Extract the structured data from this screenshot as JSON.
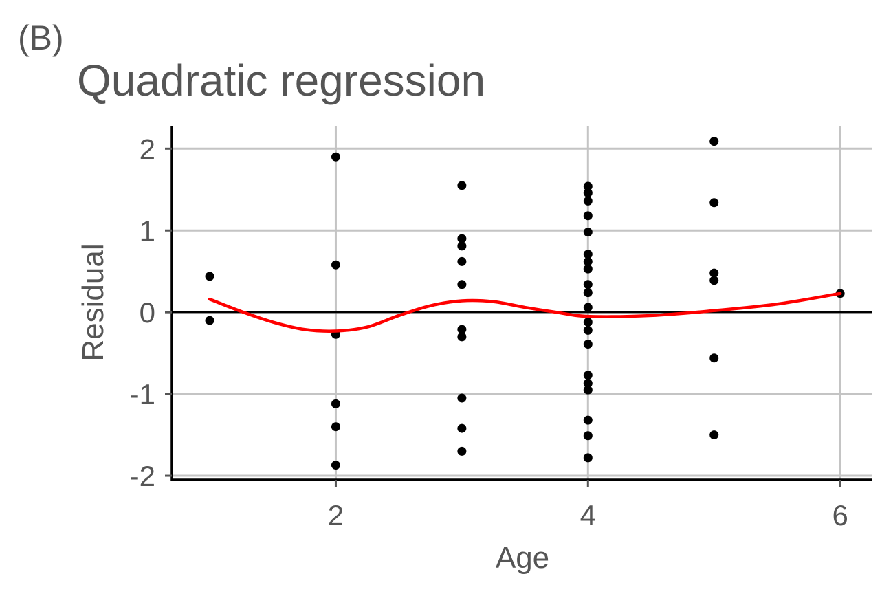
{
  "panel_tag": "(B)",
  "chart_data": {
    "type": "scatter",
    "title": "Quadratic regression",
    "xlabel": "Age",
    "ylabel": "Residual",
    "xlim": [
      0.7,
      6.25
    ],
    "ylim": [
      -2.05,
      2.28
    ],
    "x_ticks": [
      2,
      4,
      6
    ],
    "y_ticks": [
      -2,
      -1,
      0,
      1,
      2
    ],
    "x_tick_labels": [
      "2",
      "4",
      "6"
    ],
    "y_tick_labels": [
      "-2",
      "-1",
      "0",
      "1",
      "2"
    ],
    "grid": true,
    "zero_line": true,
    "series": [
      {
        "kind": "points",
        "color": "#000000",
        "points": [
          {
            "x": 1,
            "y": 0.44
          },
          {
            "x": 1,
            "y": -0.1
          },
          {
            "x": 2,
            "y": 1.9
          },
          {
            "x": 2,
            "y": 0.58
          },
          {
            "x": 2,
            "y": -0.27
          },
          {
            "x": 2,
            "y": -1.12
          },
          {
            "x": 2,
            "y": -1.4
          },
          {
            "x": 2,
            "y": -1.87
          },
          {
            "x": 3,
            "y": 1.55
          },
          {
            "x": 3,
            "y": 0.9
          },
          {
            "x": 3,
            "y": 0.81
          },
          {
            "x": 3,
            "y": 0.62
          },
          {
            "x": 3,
            "y": 0.34
          },
          {
            "x": 3,
            "y": -0.21
          },
          {
            "x": 3,
            "y": -0.3
          },
          {
            "x": 3,
            "y": -1.05
          },
          {
            "x": 3,
            "y": -1.42
          },
          {
            "x": 3,
            "y": -1.7
          },
          {
            "x": 4,
            "y": 1.54
          },
          {
            "x": 4,
            "y": 1.46
          },
          {
            "x": 4,
            "y": 1.36
          },
          {
            "x": 4,
            "y": 1.18
          },
          {
            "x": 4,
            "y": 0.98
          },
          {
            "x": 4,
            "y": 0.71
          },
          {
            "x": 4,
            "y": 0.62
          },
          {
            "x": 4,
            "y": 0.53
          },
          {
            "x": 4,
            "y": 0.34
          },
          {
            "x": 4,
            "y": 0.24
          },
          {
            "x": 4,
            "y": 0.06
          },
          {
            "x": 4,
            "y": -0.12
          },
          {
            "x": 4,
            "y": -0.22
          },
          {
            "x": 4,
            "y": -0.39
          },
          {
            "x": 4,
            "y": -0.77
          },
          {
            "x": 4,
            "y": -0.87
          },
          {
            "x": 4,
            "y": -0.95
          },
          {
            "x": 4,
            "y": -1.32
          },
          {
            "x": 4,
            "y": -1.51
          },
          {
            "x": 4,
            "y": -1.78
          },
          {
            "x": 5,
            "y": 2.09
          },
          {
            "x": 5,
            "y": 1.34
          },
          {
            "x": 5,
            "y": 0.48
          },
          {
            "x": 5,
            "y": 0.39
          },
          {
            "x": 5,
            "y": -0.56
          },
          {
            "x": 5,
            "y": -1.5
          },
          {
            "x": 6,
            "y": 0.23
          }
        ]
      },
      {
        "kind": "smooth-line",
        "color": "#ff0000",
        "x": [
          1,
          1.25,
          1.5,
          1.75,
          2,
          2.25,
          2.5,
          2.75,
          3,
          3.25,
          3.5,
          3.75,
          4,
          4.5,
          5,
          5.5,
          6
        ],
        "y": [
          0.16,
          0.01,
          -0.12,
          -0.21,
          -0.23,
          -0.18,
          -0.04,
          0.08,
          0.14,
          0.13,
          0.06,
          0,
          -0.05,
          -0.04,
          0.02,
          0.1,
          0.23
        ]
      }
    ]
  }
}
